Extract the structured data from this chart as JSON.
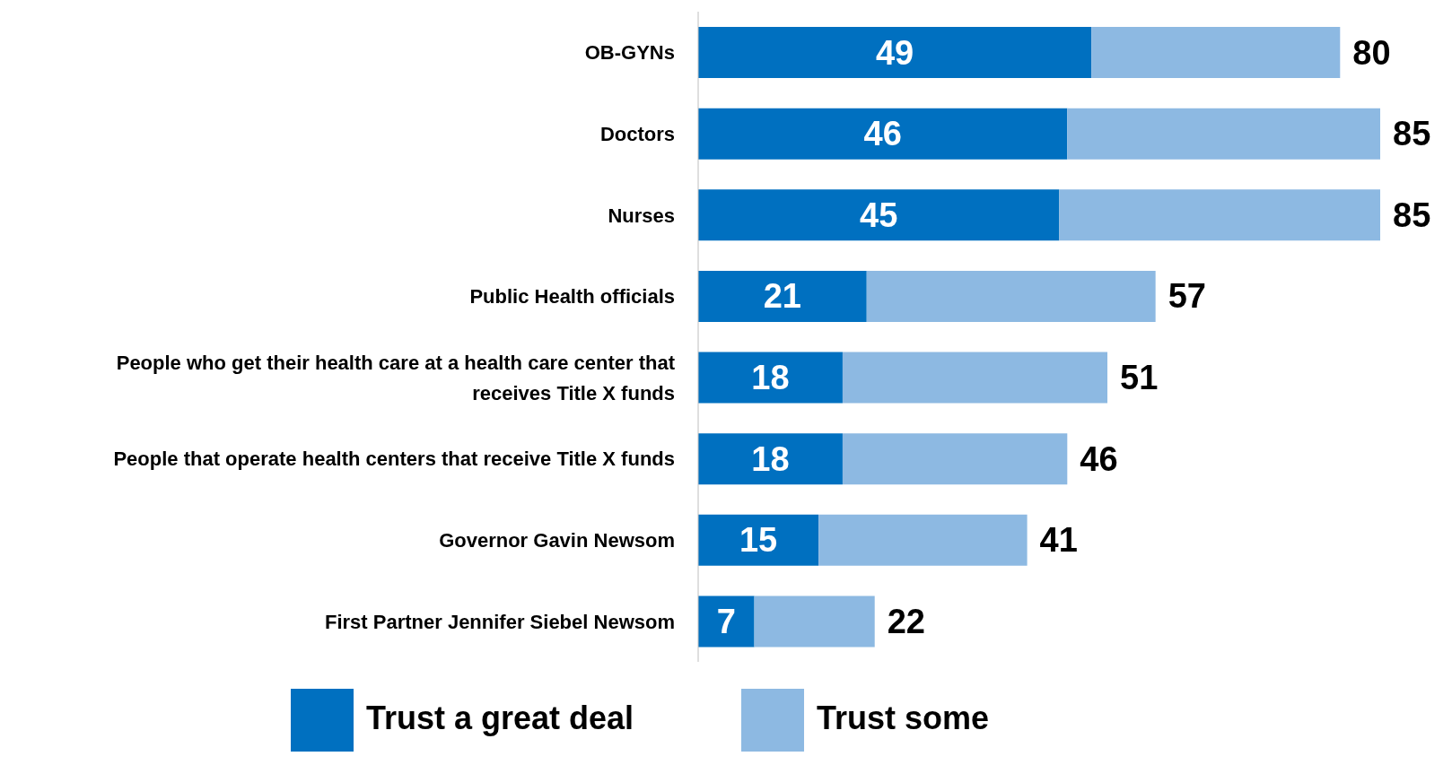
{
  "chart_data": {
    "type": "bar",
    "orientation": "horizontal",
    "stacked": true,
    "legend": "bottom",
    "categories": [
      "OB-GYNs",
      "Doctors",
      "Nurses",
      "Public Health officials",
      "People who get their health care at a health care center that receives Title X funds",
      "People that operate health centers that receive Title X funds",
      "Governor Gavin Newsom",
      "First Partner Jennifer Siebel Newsom"
    ],
    "series": [
      {
        "name": "Trust a great deal",
        "color": "#0070c0",
        "values": [
          49,
          46,
          45,
          21,
          18,
          18,
          15,
          7
        ],
        "value_labels": [
          "49",
          "46",
          "45",
          "21",
          "18",
          "18",
          "15",
          "7"
        ]
      },
      {
        "name": "Trust some",
        "color": "#8db9e2",
        "values": [
          31,
          39,
          40,
          36,
          33,
          28,
          26,
          15
        ]
      }
    ],
    "totals": [
      "80",
      "85",
      "85",
      "57",
      "51",
      "46",
      "41",
      "22"
    ]
  }
}
